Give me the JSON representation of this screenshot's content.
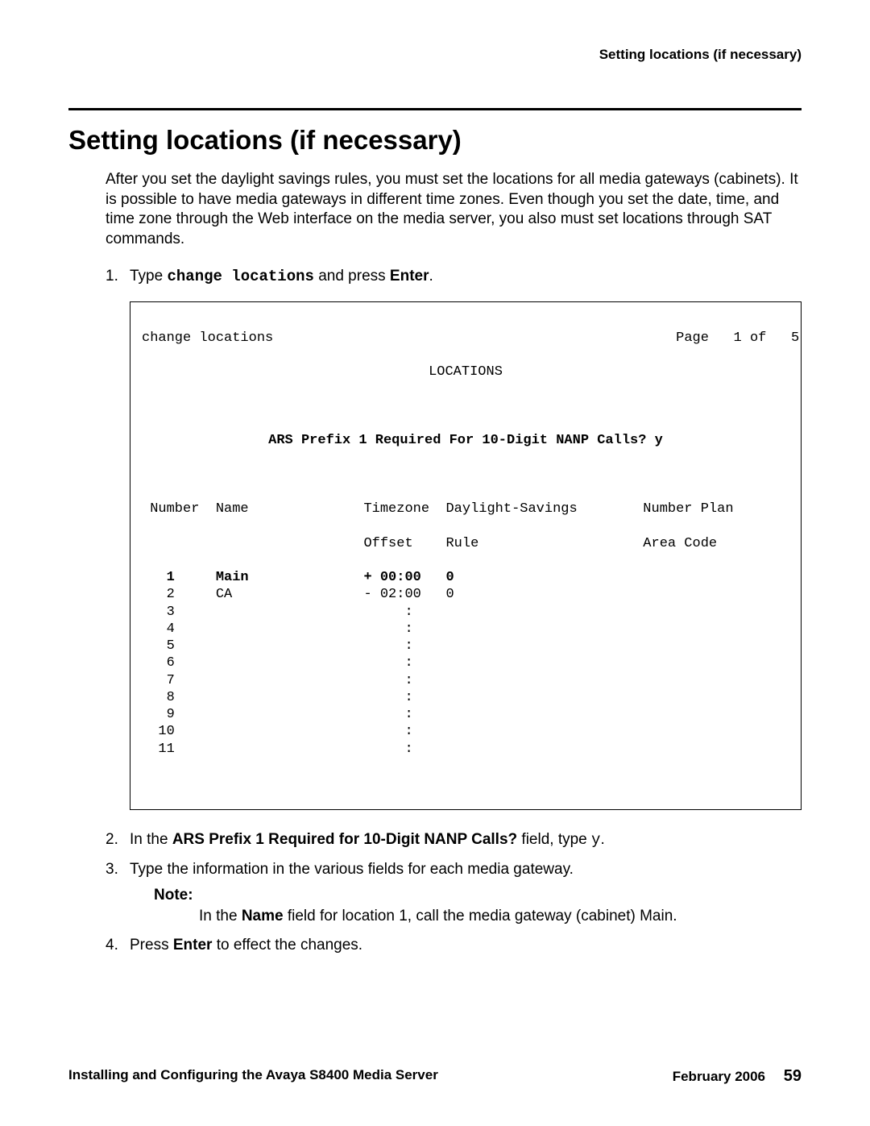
{
  "header": {
    "running_head": "Setting locations (if necessary)"
  },
  "title": "Setting locations (if necessary)",
  "intro": "After you set the daylight savings rules, you must set the locations for all media gateways (cabinets). It is possible to have media gateways in different time zones. Even though you set the date, time, and time zone through the Web interface on the media server, you also must set locations through SAT commands.",
  "steps": {
    "s1_num": "1.",
    "s1_a": "Type ",
    "s1_cmd": "change locations",
    "s1_b": " and press ",
    "s1_enter": "Enter",
    "s1_c": ".",
    "s2_num": "2.",
    "s2_a": "In the ",
    "s2_field": "ARS Prefix 1 Required for 10-Digit NANP Calls?",
    "s2_b": " field, type ",
    "s2_val": "y",
    "s2_c": ".",
    "s3_num": "3.",
    "s3": "Type the information in the various fields for each media gateway.",
    "note_label": "Note:",
    "note_a": "In the ",
    "note_b": "Name",
    "note_c": " field for location 1, call the media gateway (cabinet) Main.",
    "s4_num": "4.",
    "s4_a": "Press ",
    "s4_enter": "Enter",
    "s4_b": " to effect the changes."
  },
  "terminal": {
    "cmd_line_left": "change locations",
    "cmd_line_right": "Page   1 of   5",
    "title": "LOCATIONS",
    "ars_line": "ARS Prefix 1 Required For 10-Digit NANP Calls? y",
    "hdr1": " Number  Name              Timezone  Daylight-Savings        Number Plan",
    "hdr2": "                           Offset    Rule                    Area Code",
    "rows": [
      "   1     Main              + 00:00   0",
      "   2     CA                - 02:00   0",
      "   3                            :",
      "   4                            :",
      "   5                            :",
      "   6                            :",
      "   7                            :",
      "   8                            :",
      "   9                            :",
      "  10                            :",
      "  11                            :"
    ],
    "row_bold": [
      true,
      false,
      false,
      false,
      false,
      false,
      false,
      false,
      false,
      false,
      false
    ]
  },
  "footer": {
    "doc_title": "Installing and Configuring the Avaya S8400 Media Server",
    "date": "February 2006",
    "page_number": "59"
  }
}
